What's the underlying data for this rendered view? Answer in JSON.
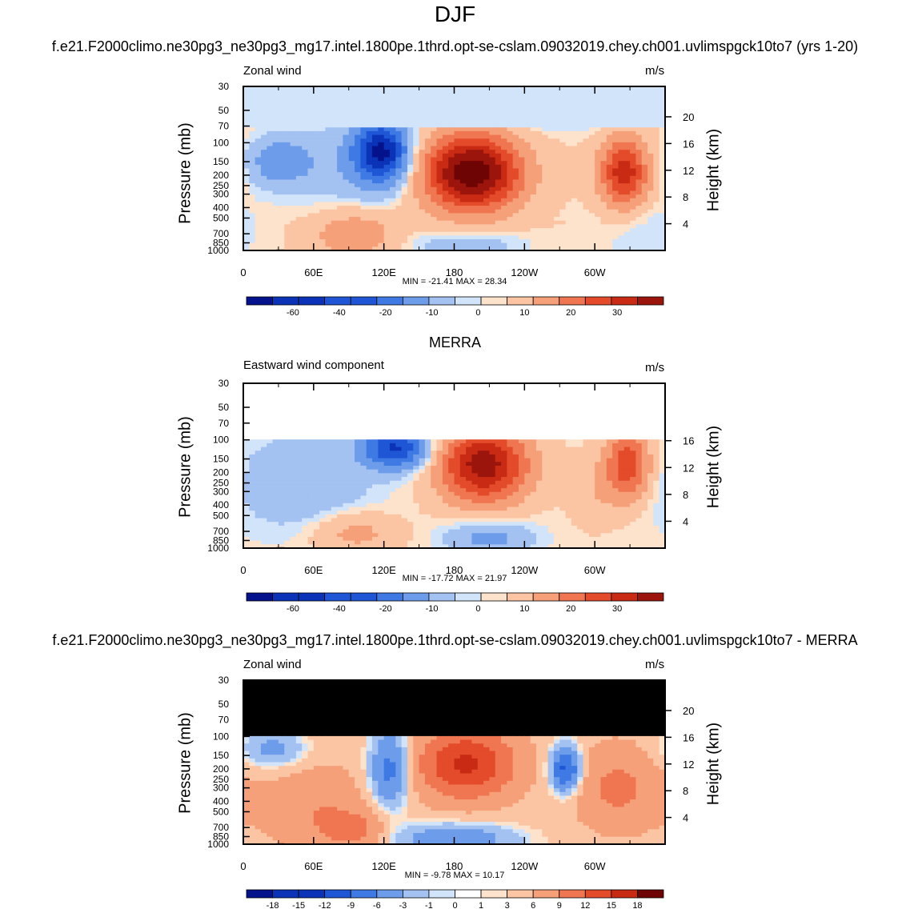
{
  "main_title": "DJF",
  "case_title": "f.e21.F2000climo.ne30pg3_ne30pg3_mg17.intel.1800pe.1thrd.opt-se-cslam.09032019.chey.ch001.uvlimspgck10to7 (yrs 1-20)",
  "obs_title": "MERRA",
  "diff_title": "f.e21.F2000climo.ne30pg3_ne30pg3_mg17.intel.1800pe.1thrd.opt-se-cslam.09032019.chey.ch001.uvlimspgck10to7 - MERRA",
  "colors": {
    "blues": [
      "#04128c",
      "#0a33b8",
      "#1f56d6",
      "#3f7ae4",
      "#6d9cea",
      "#a3c1f1",
      "#d2e4fa"
    ],
    "reds": [
      "#fde2cc",
      "#fbc5a4",
      "#f6a07a",
      "#ef7650",
      "#e34b2a",
      "#c92a14",
      "#9c150c",
      "#6e0404"
    ],
    "zero": "#ffffff"
  },
  "chart_data": [
    {
      "type": "contour",
      "panel_id": "model",
      "left_label": "Zonal wind",
      "right_label": "m/s",
      "ylabel": "Pressure (mb)",
      "right_axis_label": "Height (km)",
      "pressure_ticks": [
        "30",
        "50",
        "70",
        "100",
        "150",
        "200",
        "250",
        "300",
        "400",
        "500",
        "700",
        "850",
        "1000"
      ],
      "height_ticks": [
        "20",
        "16",
        "12",
        "8",
        "4"
      ],
      "lon_ticks": [
        "0",
        "60E",
        "120E",
        "180",
        "120W",
        "60W"
      ],
      "min_max_text": "MIN = -21.41  MAX =  28.34",
      "min": -21.41,
      "max": 28.34,
      "colorbar_labels": [
        "-60",
        "-40",
        "-20",
        "-10",
        "0",
        "10",
        "20",
        "30"
      ],
      "features": [
        {
          "name": "subtropical jet core",
          "lon": 190,
          "pressure": 200,
          "value": 28
        },
        {
          "name": "atlantic jet core",
          "lon": 325,
          "pressure": 200,
          "value": 18
        },
        {
          "name": "asian easterly max",
          "lon": 120,
          "pressure": 120,
          "value": -20
        }
      ]
    },
    {
      "type": "contour",
      "panel_id": "obs",
      "left_label": "Eastward wind component",
      "right_label": "m/s",
      "ylabel": "Pressure (mb)",
      "right_axis_label": "Height (km)",
      "pressure_ticks": [
        "30",
        "50",
        "70",
        "100",
        "150",
        "200",
        "250",
        "300",
        "400",
        "500",
        "700",
        "850",
        "1000"
      ],
      "height_ticks": [
        "16",
        "12",
        "8",
        "4"
      ],
      "lon_ticks": [
        "0",
        "60E",
        "120E",
        "180",
        "120W",
        "60W"
      ],
      "min_max_text": "MIN = -17.72  MAX =  21.97",
      "min": -17.72,
      "max": 21.97,
      "colorbar_labels": [
        "-60",
        "-40",
        "-20",
        "-10",
        "0",
        "10",
        "20",
        "30"
      ],
      "features": [
        {
          "name": "subtropical jet core",
          "lon": 200,
          "pressure": 170,
          "value": 22
        },
        {
          "name": "atlantic jet core",
          "lon": 325,
          "pressure": 170,
          "value": 15
        },
        {
          "name": "asian easterly max",
          "lon": 130,
          "pressure": 120,
          "value": -17
        }
      ]
    },
    {
      "type": "contour",
      "panel_id": "diff",
      "left_label": "Zonal wind",
      "right_label": "m/s",
      "ylabel": "Pressure (mb)",
      "right_axis_label": "Height (km)",
      "pressure_ticks": [
        "30",
        "50",
        "70",
        "100",
        "150",
        "200",
        "250",
        "300",
        "400",
        "500",
        "700",
        "850",
        "1000"
      ],
      "height_ticks": [
        "20",
        "16",
        "12",
        "8",
        "4"
      ],
      "lon_ticks": [
        "0",
        "60E",
        "120E",
        "180",
        "120W",
        "60W"
      ],
      "min_max_text": "MIN =  -9.78  MAX =  10.17",
      "min": -9.78,
      "max": 10.17,
      "colorbar_labels": [
        "-18",
        "-15",
        "-12",
        "-9",
        "-6",
        "-3",
        "-1",
        "0",
        "1",
        "3",
        "6",
        "9",
        "12",
        "15",
        "18"
      ],
      "features": [
        {
          "name": "positive difference max",
          "lon": 190,
          "pressure": 180,
          "value": 10
        },
        {
          "name": "negative difference min",
          "lon": 275,
          "pressure": 200,
          "value": -9.8
        }
      ]
    }
  ]
}
